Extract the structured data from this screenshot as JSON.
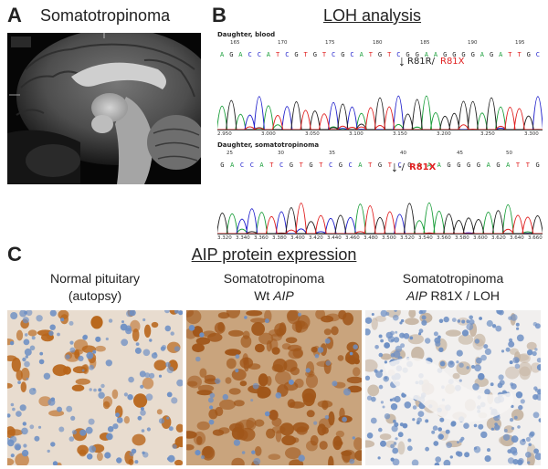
{
  "panel_a": {
    "label": "A",
    "title": "Somatotropinoma"
  },
  "panel_b": {
    "label": "B",
    "title": "LOH analysis",
    "trace1": {
      "name": "Daughter, blood",
      "mutation_wt": "R81R/",
      "mutation_mut": "R81X",
      "positions": [
        "165",
        "170",
        "175",
        "180",
        "185",
        "190",
        "195"
      ],
      "bases": "AGACCATCGTGTCGCATGTCGGAAGGGGAGATTGC",
      "axis_ticks": [
        "2.950",
        "3.000",
        "3.050",
        "3.100",
        "3.150",
        "3.200",
        "3.250",
        "3.300"
      ]
    },
    "trace2": {
      "name": "Daughter, somatotropinoma",
      "mutation_wt": "-/",
      "mutation_mut": "R81X",
      "positions": [
        "25",
        "30",
        "35",
        "40",
        "45",
        "50"
      ],
      "bases": "GACCATCGTGTCGCATGTCGAAAGGGGAGATTG",
      "axis_ticks": [
        "3.320",
        "3.340",
        "3.360",
        "3.380",
        "3.400",
        "3.420",
        "3.440",
        "3.460",
        "3.480",
        "3.500",
        "3.520",
        "3.540",
        "3.560",
        "3.580",
        "3.600",
        "3.620",
        "3.640",
        "3.660"
      ]
    }
  },
  "panel_c": {
    "label": "C",
    "title": "AIP protein expression",
    "columns": [
      {
        "line1": "Normal pituitary",
        "line2": "(autopsy)"
      },
      {
        "line1": "Somatotropinoma",
        "line2_pre": "Wt ",
        "line2_gene": "AIP",
        "line2_post": ""
      },
      {
        "line1": "Somatotropinoma",
        "line2_pre": "",
        "line2_gene": "AIP",
        "line2_post": " R81X / LOH"
      }
    ]
  },
  "colors": {
    "A": "#1a9e3a",
    "C": "#2222cc",
    "G": "#222222",
    "T": "#e02020",
    "stain_brown": "#b8651a",
    "stain_blue": "#6d8fc4"
  }
}
